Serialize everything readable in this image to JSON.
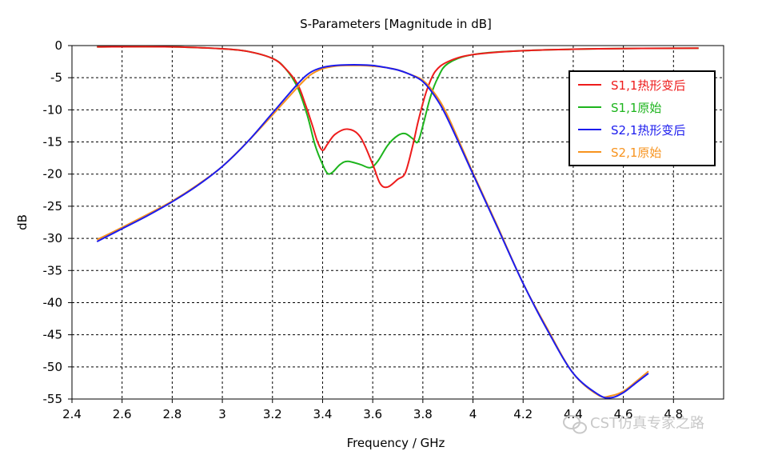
{
  "chart_data": {
    "type": "line",
    "title": "S-Parameters [Magnitude in dB]",
    "xlabel": "Frequency / GHz",
    "ylabel": "dB",
    "xlim": [
      2.4,
      5.0
    ],
    "ylim": [
      -55,
      0
    ],
    "x_ticks": [
      2.4,
      2.6,
      2.8,
      3,
      3.2,
      3.4,
      3.6,
      3.8,
      4,
      4.2,
      4.4,
      4.6,
      4.8
    ],
    "x_tick_labels": [
      "2.4",
      "2.6",
      "2.8",
      "3",
      "3.2",
      "3.4",
      "3.6",
      "3.8",
      "4",
      "4.2",
      "4.4",
      "4.6",
      "4.8"
    ],
    "y_ticks": [
      0,
      -5,
      -10,
      -15,
      -20,
      -25,
      -30,
      -35,
      -40,
      -45,
      -50,
      -55
    ],
    "y_tick_labels": [
      "0",
      "-5",
      "-10",
      "-15",
      "-20",
      "-25",
      "-30",
      "-35",
      "-40",
      "-45",
      "-50",
      "-55"
    ],
    "grid": true,
    "legend_position": "top-right",
    "series": [
      {
        "name": "S1,1热形变后",
        "color": "#ee1c1c",
        "x": [
          2.5,
          2.8,
          3.0,
          3.1,
          3.2,
          3.25,
          3.3,
          3.33,
          3.36,
          3.38,
          3.4,
          3.42,
          3.45,
          3.5,
          3.55,
          3.6,
          3.63,
          3.66,
          3.7,
          3.73,
          3.76,
          3.78,
          3.8,
          3.82,
          3.85,
          3.9,
          4.0,
          4.2,
          4.5,
          4.9
        ],
        "values": [
          -0.2,
          -0.2,
          -0.5,
          -0.9,
          -2.0,
          -3.5,
          -6.0,
          -9.0,
          -12.5,
          -15.0,
          -16.3,
          -15.3,
          -13.8,
          -13.0,
          -14.2,
          -18.5,
          -21.5,
          -22.0,
          -20.8,
          -19.8,
          -15.5,
          -12.0,
          -9.0,
          -6.5,
          -4.0,
          -2.5,
          -1.4,
          -0.8,
          -0.5,
          -0.4
        ]
      },
      {
        "name": "S1,1原始",
        "color": "#1db41d",
        "x": [
          2.5,
          2.8,
          3.0,
          3.1,
          3.2,
          3.25,
          3.3,
          3.34,
          3.37,
          3.4,
          3.42,
          3.44,
          3.47,
          3.5,
          3.55,
          3.59,
          3.62,
          3.66,
          3.7,
          3.73,
          3.76,
          3.78,
          3.8,
          3.83,
          3.86,
          3.9,
          4.0,
          4.2,
          4.5,
          4.9
        ],
        "values": [
          -0.2,
          -0.2,
          -0.5,
          -0.9,
          -2.0,
          -3.5,
          -6.5,
          -11.0,
          -15.5,
          -18.5,
          -19.9,
          -19.7,
          -18.5,
          -18.0,
          -18.5,
          -19.0,
          -18.0,
          -15.5,
          -14.0,
          -13.7,
          -14.5,
          -15.0,
          -12.5,
          -8.0,
          -5.0,
          -2.8,
          -1.4,
          -0.8,
          -0.5,
          -0.4
        ]
      },
      {
        "name": "S2,1热形变后",
        "color": "#1c1cee",
        "x": [
          2.5,
          2.6,
          2.7,
          2.8,
          2.9,
          3.0,
          3.1,
          3.2,
          3.3,
          3.35,
          3.4,
          3.45,
          3.5,
          3.55,
          3.6,
          3.65,
          3.7,
          3.75,
          3.8,
          3.85,
          3.9,
          4.0,
          4.1,
          4.2,
          4.3,
          4.4,
          4.5,
          4.55,
          4.6,
          4.65,
          4.7
        ],
        "values": [
          -30.5,
          -28.5,
          -26.5,
          -24.3,
          -21.8,
          -18.8,
          -15.0,
          -10.5,
          -6.0,
          -4.2,
          -3.4,
          -3.1,
          -3.0,
          -3.0,
          -3.1,
          -3.4,
          -3.8,
          -4.5,
          -5.6,
          -8.0,
          -11.5,
          -20.0,
          -28.5,
          -37.0,
          -44.5,
          -51.0,
          -54.3,
          -54.8,
          -54.0,
          -52.5,
          -51.0
        ]
      },
      {
        "name": "S2,1原始",
        "color": "#f7931e",
        "x": [
          2.5,
          2.6,
          2.7,
          2.8,
          2.9,
          3.0,
          3.1,
          3.2,
          3.3,
          3.35,
          3.4,
          3.45,
          3.5,
          3.55,
          3.6,
          3.65,
          3.7,
          3.75,
          3.8,
          3.85,
          3.9,
          4.0,
          4.1,
          4.2,
          4.3,
          4.4,
          4.5,
          4.55,
          4.6,
          4.65,
          4.7
        ],
        "values": [
          -30.2,
          -28.3,
          -26.3,
          -24.2,
          -21.7,
          -18.8,
          -15.0,
          -10.8,
          -6.5,
          -4.6,
          -3.6,
          -3.2,
          -3.1,
          -3.1,
          -3.2,
          -3.4,
          -3.8,
          -4.5,
          -5.4,
          -7.6,
          -11.0,
          -19.8,
          -28.3,
          -37.0,
          -44.3,
          -51.0,
          -54.4,
          -54.5,
          -53.8,
          -52.3,
          -50.7
        ]
      }
    ]
  },
  "watermark": {
    "text": "CST仿真专家之路",
    "icon": "wechat-icon"
  }
}
